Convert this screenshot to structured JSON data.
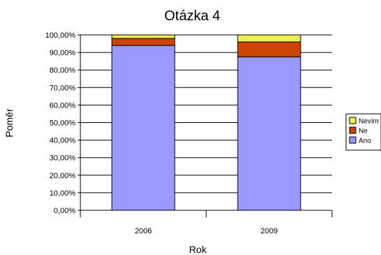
{
  "chart_data": {
    "type": "bar",
    "stacked": true,
    "title": "Otázka 4",
    "xlabel": "Rok",
    "ylabel": "Poměr",
    "categories": [
      "2006",
      "2009"
    ],
    "ylim": [
      0,
      100
    ],
    "ytick_step": 10,
    "ytick_labels": [
      "0,00%",
      "10,00%",
      "20,00%",
      "30,00%",
      "40,00%",
      "50,00%",
      "60,00%",
      "70,00%",
      "80,00%",
      "90,00%",
      "100,00%"
    ],
    "grid": true,
    "legend_position": "right",
    "series": [
      {
        "name": "Ano",
        "values": [
          94,
          87.5
        ],
        "color": "#9999ff"
      },
      {
        "name": "Ne",
        "values": [
          4,
          8.5
        ],
        "color": "#cc4400"
      },
      {
        "name": "Nevím",
        "values": [
          2,
          4
        ],
        "color": "#eeee55"
      }
    ]
  }
}
